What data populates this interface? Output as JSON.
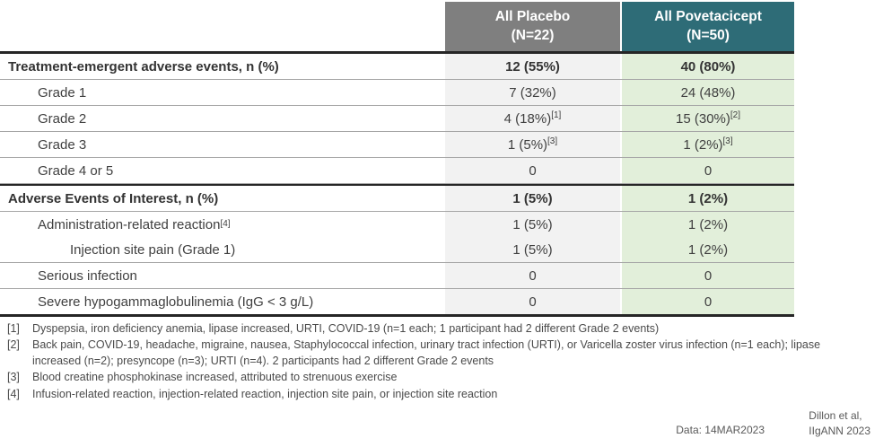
{
  "table": {
    "colors": {
      "placebo_header_bg": "#7F7F7F",
      "povetacicept_header_bg": "#2E6C77",
      "placebo_column_bg": "#F2F2F2",
      "povetacicept_column_bg": "#E2EFDA",
      "header_text": "#FFFFFF",
      "body_text": "#404040"
    },
    "header": {
      "placebo_line1": "All Placebo",
      "placebo_line2": "(N=22)",
      "povetacicept_line1": "All Povetacicept",
      "povetacicept_line2": "(N=50)"
    },
    "rows": [
      {
        "label": "Treatment-emergent adverse events, n (%)",
        "placebo": "12 (55%)",
        "pove": "40 (80%)"
      },
      {
        "label": "Grade 1",
        "placebo": "7 (32%)",
        "pove": "24 (48%)"
      },
      {
        "label": "Grade 2",
        "placebo": "4 (18%)",
        "placebo_sup": "[1]",
        "pove": "15 (30%)",
        "pove_sup": "[2]"
      },
      {
        "label": "Grade 3",
        "placebo": "1 (5%)",
        "placebo_sup": "[3]",
        "pove": "1 (2%)",
        "pove_sup": "[3]"
      },
      {
        "label": "Grade 4 or 5",
        "placebo": "0",
        "pove": "0"
      },
      {
        "label": "Adverse Events of Interest, n (%)",
        "placebo": "1 (5%)",
        "pove": "1 (2%)"
      },
      {
        "label": "Administration-related reaction",
        "label_sup": "[4]",
        "placebo": "1 (5%)",
        "pove": "1 (2%)"
      },
      {
        "label": "Injection site pain (Grade 1)",
        "placebo": "1 (5%)",
        "pove": "1 (2%)"
      },
      {
        "label": "Serious infection",
        "placebo": "0",
        "pove": "0"
      },
      {
        "label": "Severe hypogammaglobulinemia (IgG < 3 g/L)",
        "placebo": "0",
        "pove": "0"
      }
    ]
  },
  "footnotes": [
    {
      "marker": "[1]",
      "text": "Dyspepsia, iron deficiency anemia, lipase increased, URTI, COVID-19 (n=1 each; 1 participant had 2 different Grade 2 events)"
    },
    {
      "marker": "[2]",
      "text": "Back pain, COVID-19, headache, migraine, nausea, Staphylococcal infection, urinary tract infection (URTI), or Varicella zoster virus infection (n=1 each); lipase increased (n=2); presyncope (n=3); URTI (n=4). 2 participants had 2 different Grade 2 events"
    },
    {
      "marker": "[3]",
      "text": "Blood creatine phosphokinase increased, attributed to strenuous exercise"
    },
    {
      "marker": "[4]",
      "text": "Infusion-related reaction, injection-related reaction, injection site pain, or injection site reaction"
    }
  ],
  "footer": {
    "data_date": "Data: 14MAR2023",
    "citation_line1": "Dillon et al,",
    "citation_line2": "IIgANN 2023"
  }
}
